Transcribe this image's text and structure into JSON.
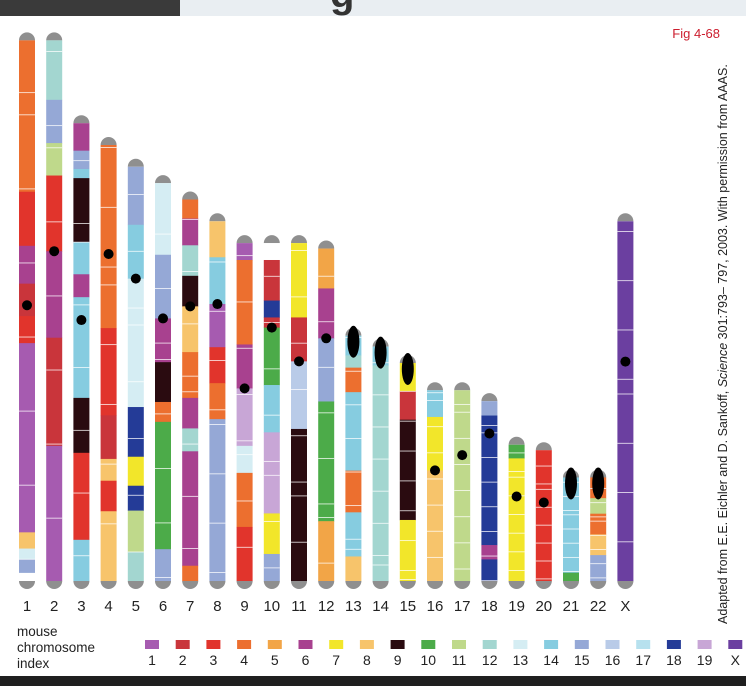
{
  "header": {
    "title_fragment": "g"
  },
  "figure_label": "Fig 4-68",
  "credit": {
    "prefix": "Adapted from E.E. Eichler and D. Sankoff, ",
    "journal": "Science",
    "suffix": " 301:793– 797, 2003. With permission from AAAS."
  },
  "legend": {
    "title_lines": [
      "mouse",
      "chromosome",
      "index"
    ],
    "items": [
      "1",
      "2",
      "3",
      "4",
      "5",
      "6",
      "7",
      "8",
      "9",
      "10",
      "11",
      "12",
      "13",
      "14",
      "15",
      "16",
      "17",
      "18",
      "19",
      "X"
    ]
  },
  "mouse_colors": [
    "#a65bb0",
    "#c9353b",
    "#e1342c",
    "#ec6f2f",
    "#f2a547",
    "#a8418f",
    "#f2e62a",
    "#f7c46b",
    "#2a0b10",
    "#4cab49",
    "#bfd98b",
    "#a3d6d0",
    "#d5edf3",
    "#86cce0",
    "#95a8d6",
    "#b9cbe8",
    "#b7e1ee",
    "#243b97",
    "#c8a6d6",
    "#6b3fa0"
  ],
  "chromosomes": [
    {
      "label": "1",
      "len": 0.992,
      "cen": 0.49,
      "bands": [
        [
          0,
          0.28,
          "#ec6f2f"
        ],
        [
          0.28,
          0.38,
          "#e1342c"
        ],
        [
          0.38,
          0.45,
          "#a8418f"
        ],
        [
          0.45,
          0.51,
          "#c9353b"
        ],
        [
          0.51,
          0.56,
          "#e1342c"
        ],
        [
          0.56,
          0.91,
          "#a65bb0"
        ],
        [
          0.91,
          0.94,
          "#f7c46b"
        ],
        [
          0.94,
          0.96,
          "#d5edf3"
        ],
        [
          0.96,
          0.985,
          "#95a8d6"
        ],
        [
          0.985,
          1,
          "#ffffff"
        ]
      ]
    },
    {
      "label": "2",
      "len": 0.992,
      "cen": 0.39,
      "bands": [
        [
          0,
          0.11,
          "#a3d6d0"
        ],
        [
          0.11,
          0.19,
          "#95a8d6"
        ],
        [
          0.19,
          0.25,
          "#bfd98b"
        ],
        [
          0.25,
          0.39,
          "#e1342c"
        ],
        [
          0.39,
          0.55,
          "#a8418f"
        ],
        [
          0.55,
          0.75,
          "#c9353b"
        ],
        [
          0.75,
          1,
          "#a65bb0"
        ]
      ]
    },
    {
      "label": "3",
      "len": 0.84,
      "cen": 0.43,
      "bands": [
        [
          0,
          0.06,
          "#a8418f"
        ],
        [
          0.06,
          0.1,
          "#95a8d6"
        ],
        [
          0.1,
          0.12,
          "#86cce0"
        ],
        [
          0.12,
          0.26,
          "#2a0b10"
        ],
        [
          0.26,
          0.33,
          "#86cce0"
        ],
        [
          0.33,
          0.38,
          "#a8418f"
        ],
        [
          0.38,
          0.6,
          "#86cce0"
        ],
        [
          0.6,
          0.72,
          "#2a0b10"
        ],
        [
          0.72,
          0.91,
          "#e1342c"
        ],
        [
          0.91,
          1,
          "#86cce0"
        ]
      ]
    },
    {
      "label": "4",
      "len": 0.8,
      "cen": 0.25,
      "bands": [
        [
          0,
          0.25,
          "#ec6f2f"
        ],
        [
          0.25,
          0.42,
          "#ec6f2f"
        ],
        [
          0.42,
          0.62,
          "#e1342c"
        ],
        [
          0.62,
          0.72,
          "#c9353b"
        ],
        [
          0.72,
          0.77,
          "#f7c46b"
        ],
        [
          0.77,
          0.84,
          "#e1342c"
        ],
        [
          0.84,
          1,
          "#f7c46b"
        ]
      ]
    },
    {
      "label": "5",
      "len": 0.76,
      "cen": 0.27,
      "bands": [
        [
          0,
          0.14,
          "#95a8d6"
        ],
        [
          0.14,
          0.27,
          "#86cce0"
        ],
        [
          0.27,
          0.58,
          "#d5edf3"
        ],
        [
          0.58,
          0.7,
          "#243b97"
        ],
        [
          0.7,
          0.77,
          "#f2e62a"
        ],
        [
          0.77,
          0.83,
          "#243b97"
        ],
        [
          0.83,
          0.93,
          "#bfd98b"
        ],
        [
          0.93,
          1,
          "#a3d6d0"
        ]
      ]
    },
    {
      "label": "6",
      "len": 0.73,
      "cen": 0.34,
      "bands": [
        [
          0,
          0.18,
          "#d5edf3"
        ],
        [
          0.18,
          0.34,
          "#95a8d6"
        ],
        [
          0.34,
          0.45,
          "#a8418f"
        ],
        [
          0.45,
          0.55,
          "#2a0b10"
        ],
        [
          0.55,
          0.6,
          "#ec6f2f"
        ],
        [
          0.6,
          0.92,
          "#4cab49"
        ],
        [
          0.92,
          1,
          "#95a8d6"
        ]
      ]
    },
    {
      "label": "7",
      "len": 0.7,
      "cen": 0.28,
      "bands": [
        [
          0,
          0.05,
          "#ec6f2f"
        ],
        [
          0.05,
          0.12,
          "#a8418f"
        ],
        [
          0.12,
          0.2,
          "#a3d6d0"
        ],
        [
          0.2,
          0.28,
          "#2a0b10"
        ],
        [
          0.28,
          0.4,
          "#f7c46b"
        ],
        [
          0.4,
          0.52,
          "#ec6f2f"
        ],
        [
          0.52,
          0.6,
          "#a8418f"
        ],
        [
          0.6,
          0.66,
          "#a3d6d0"
        ],
        [
          0.66,
          0.96,
          "#a8418f"
        ],
        [
          0.96,
          1,
          "#ec6f2f"
        ]
      ]
    },
    {
      "label": "8",
      "len": 0.66,
      "cen": 0.23,
      "bands": [
        [
          0,
          0.1,
          "#f7c46b"
        ],
        [
          0.1,
          0.23,
          "#86cce0"
        ],
        [
          0.23,
          0.35,
          "#a65bb0"
        ],
        [
          0.35,
          0.45,
          "#e1342c"
        ],
        [
          0.45,
          0.55,
          "#ec6f2f"
        ],
        [
          0.55,
          1,
          "#95a8d6"
        ]
      ]
    },
    {
      "label": "9",
      "len": 0.62,
      "cen": 0.43,
      "bands": [
        [
          0,
          0.05,
          "#a65bb0"
        ],
        [
          0.05,
          0.3,
          "#ec6f2f"
        ],
        [
          0.3,
          0.43,
          "#a8418f"
        ],
        [
          0.43,
          0.6,
          "#c8a6d6"
        ],
        [
          0.6,
          0.68,
          "#d5edf3"
        ],
        [
          0.68,
          0.84,
          "#ec6f2f"
        ],
        [
          0.84,
          1,
          "#e1342c"
        ]
      ]
    },
    {
      "label": "10",
      "len": 0.62,
      "cen": 0.25,
      "bands": [
        [
          0,
          0.05,
          "#ffffff"
        ],
        [
          0.05,
          0.17,
          "#c9353b"
        ],
        [
          0.17,
          0.22,
          "#243b97"
        ],
        [
          0.22,
          0.25,
          "#c9353b"
        ],
        [
          0.25,
          0.42,
          "#4cab49"
        ],
        [
          0.42,
          0.56,
          "#86cce0"
        ],
        [
          0.56,
          0.8,
          "#c8a6d6"
        ],
        [
          0.8,
          0.92,
          "#f2e62a"
        ],
        [
          0.92,
          1,
          "#95a8d6"
        ]
      ]
    },
    {
      "label": "11",
      "len": 0.62,
      "cen": 0.35,
      "bands": [
        [
          0,
          0.22,
          "#f2e62a"
        ],
        [
          0.22,
          0.35,
          "#c9353b"
        ],
        [
          0.35,
          0.55,
          "#b9cbe8"
        ],
        [
          0.55,
          0.65,
          "#2a0b10"
        ],
        [
          0.65,
          1,
          "#2a0b10"
        ]
      ]
    },
    {
      "label": "12",
      "len": 0.61,
      "cen": 0.27,
      "bands": [
        [
          0,
          0.12,
          "#f2a547"
        ],
        [
          0.12,
          0.27,
          "#a8418f"
        ],
        [
          0.27,
          0.46,
          "#95a8d6"
        ],
        [
          0.46,
          0.82,
          "#4cab49"
        ],
        [
          0.82,
          1,
          "#f2a547"
        ]
      ]
    },
    {
      "label": "13",
      "len": 0.45,
      "cen": 0.0,
      "bands": [
        [
          0,
          0.08,
          "#86cce0"
        ],
        [
          0.08,
          0.13,
          "#a3d6d0"
        ],
        [
          0.13,
          0.23,
          "#ec6f2f"
        ],
        [
          0.23,
          0.55,
          "#86cce0"
        ],
        [
          0.55,
          0.72,
          "#ec6f2f"
        ],
        [
          0.72,
          0.9,
          "#86cce0"
        ],
        [
          0.9,
          1,
          "#f7c46b"
        ]
      ]
    },
    {
      "label": "14",
      "len": 0.43,
      "cen": 0.0,
      "bands": [
        [
          0,
          0.08,
          "#86cce0"
        ],
        [
          0.08,
          1,
          "#a3d6d0"
        ]
      ]
    },
    {
      "label": "15",
      "len": 0.4,
      "cen": 0.0,
      "bands": [
        [
          0,
          0.13,
          "#f2e62a"
        ],
        [
          0.13,
          0.26,
          "#c9353b"
        ],
        [
          0.26,
          0.72,
          "#2a0b10"
        ],
        [
          0.72,
          1,
          "#f2e62a"
        ]
      ]
    },
    {
      "label": "16",
      "len": 0.35,
      "cen": 0.42,
      "bands": [
        [
          0,
          0.14,
          "#86cce0"
        ],
        [
          0.14,
          0.42,
          "#f2e62a"
        ],
        [
          0.42,
          1,
          "#f7c46b"
        ]
      ]
    },
    {
      "label": "17",
      "len": 0.35,
      "cen": 0.34,
      "bands": [
        [
          0,
          1,
          "#bfd98b"
        ]
      ]
    },
    {
      "label": "18",
      "len": 0.33,
      "cen": 0.18,
      "bands": [
        [
          0,
          0.08,
          "#95a8d6"
        ],
        [
          0.08,
          0.18,
          "#243b97"
        ],
        [
          0.18,
          0.8,
          "#243b97"
        ],
        [
          0.8,
          0.88,
          "#a8418f"
        ],
        [
          0.88,
          1,
          "#243b97"
        ]
      ]
    },
    {
      "label": "19",
      "len": 0.25,
      "cen": 0.38,
      "bands": [
        [
          0,
          0.1,
          "#4cab49"
        ],
        [
          0.1,
          0.38,
          "#f2e62a"
        ],
        [
          0.38,
          1,
          "#f2e62a"
        ]
      ]
    },
    {
      "label": "20",
      "len": 0.24,
      "cen": 0.4,
      "bands": [
        [
          0,
          1,
          "#e1342c"
        ]
      ]
    },
    {
      "label": "21",
      "len": 0.19,
      "cen": 0.0,
      "bands": [
        [
          0,
          0.92,
          "#86cce0"
        ],
        [
          0.92,
          1,
          "#4cab49"
        ]
      ]
    },
    {
      "label": "22",
      "len": 0.19,
      "cen": 0.0,
      "bands": [
        [
          0,
          0.2,
          "#ec6f2f"
        ],
        [
          0.2,
          0.35,
          "#bfd98b"
        ],
        [
          0.35,
          0.55,
          "#ec6f2f"
        ],
        [
          0.55,
          0.75,
          "#f7c46b"
        ],
        [
          0.75,
          1,
          "#95a8d6"
        ]
      ]
    },
    {
      "label": "X",
      "len": 0.66,
      "cen": 0.39,
      "bands": [
        [
          0,
          1,
          "#6b3fa0"
        ]
      ]
    }
  ]
}
